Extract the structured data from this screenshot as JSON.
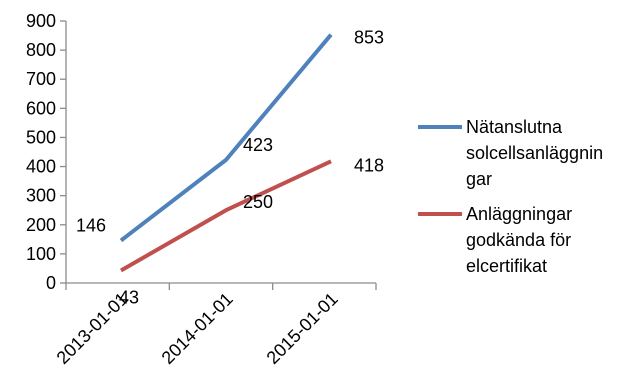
{
  "chart_data": {
    "type": "line",
    "categories": [
      "2013-01-01",
      "2014-01-01",
      "2015-01-01"
    ],
    "ylim": [
      0,
      900
    ],
    "yticks": [
      0,
      100,
      200,
      300,
      400,
      500,
      600,
      700,
      800,
      900
    ],
    "grid": false,
    "legend": "right",
    "series": [
      {
        "name": "Nätanslutna solcellsanläggningar",
        "legend_lines": [
          "Nätanslutna",
          "solcellsanläggnin",
          "gar"
        ],
        "color": "#4f81bd",
        "values": [
          146,
          423,
          853
        ]
      },
      {
        "name": "Anläggningar godkända för elcertifikat",
        "legend_lines": [
          "Anläggningar",
          "godkända för",
          "elcertifikat"
        ],
        "color": "#c0504d",
        "values": [
          43,
          250,
          418
        ]
      }
    ]
  }
}
